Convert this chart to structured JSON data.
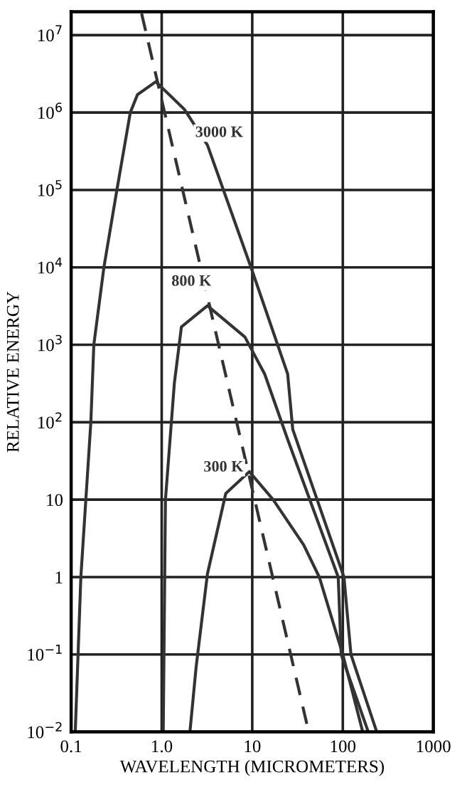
{
  "chart_data": {
    "type": "line",
    "xlabel": "WAVELENGTH (MICROMETERS)",
    "ylabel": "RELATIVE ENERGY",
    "log": "xy",
    "grid": true,
    "line_style": "solid",
    "marker": "none",
    "xlim": [
      0.1,
      1000
    ],
    "ylim": [
      0.01,
      20000000
    ],
    "xticks": [
      0.1,
      {
        "value": 1,
        "label": "1.0"
      },
      10,
      100,
      1000
    ],
    "yticks": [
      {
        "value": 0.01,
        "label": "10$^{−2}$"
      },
      {
        "value": 0.1,
        "label": "10$^{−1}$"
      },
      1,
      10,
      {
        "value": 100,
        "label": "10$^{2}$"
      },
      {
        "value": 1000,
        "label": "10$^{3}$"
      },
      {
        "value": 10000,
        "label": "10$^{4}$"
      },
      {
        "value": 100000,
        "label": "10$^{5}$"
      },
      {
        "value": 1000000,
        "label": "10$^{6}$"
      },
      {
        "value": 10000000,
        "label": "10$^{7}$"
      }
    ],
    "series": [
      {
        "name": "3000 K",
        "color": "#333333",
        "x": [
          0.111,
          0.128,
          0.165,
          0.178,
          0.23,
          0.32,
          0.45,
          0.54,
          0.86,
          1.78,
          3.2,
          10,
          24.6,
          28,
          103,
          123,
          237
        ],
        "values": [
          0.01,
          1,
          100,
          1000,
          10000,
          100000,
          1000000,
          1700000,
          2500000,
          1100000,
          380000,
          9000,
          420,
          81,
          1,
          0.1,
          0.01
        ]
      },
      {
        "name": "800 K",
        "color": "#333333",
        "x": [
          1.04,
          1.1,
          1.38,
          1.65,
          3.2,
          8.3,
          13.7,
          24.6,
          89,
          96,
          191
        ],
        "values": [
          0.01,
          10,
          320,
          1700,
          3200,
          1260,
          420,
          60,
          1,
          0.1,
          0.01
        ]
      },
      {
        "name": "300 K",
        "color": "#333333",
        "x": [
          2.05,
          2.4,
          3.2,
          5.1,
          9.3,
          17,
          37,
          55,
          100,
          166
        ],
        "values": [
          0.01,
          0.069,
          1.1,
          12,
          23,
          10,
          2.6,
          1,
          0.1,
          0.01
        ]
      },
      {
        "color": "#333333",
        "line_style": "dashed",
        "x": [
          0.6,
          42
        ],
        "values": [
          19000000,
          0.01
        ]
      }
    ]
  }
}
